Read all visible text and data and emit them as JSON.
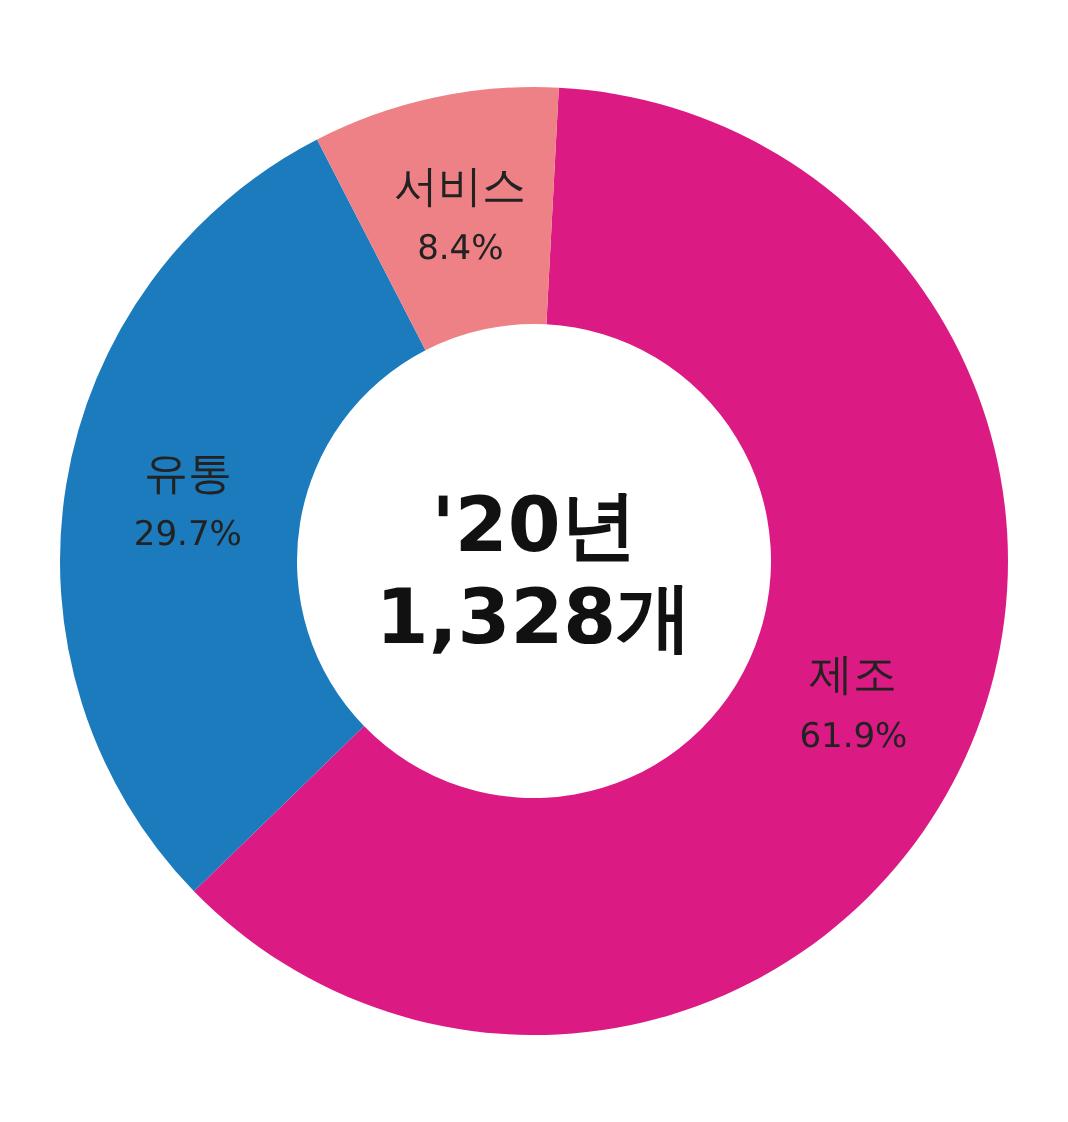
{
  "chart_data": {
    "type": "donut",
    "categories": [
      "제조",
      "유통",
      "서비스"
    ],
    "values": [
      61.9,
      29.7,
      8.4
    ],
    "colors": [
      "#dc1a84",
      "#1c7bbd",
      "#ee8185"
    ],
    "value_labels": [
      "61.9%",
      "29.7%",
      "8.4%"
    ],
    "annotations": [
      "'20년",
      "1,328개"
    ],
    "legend": false
  }
}
